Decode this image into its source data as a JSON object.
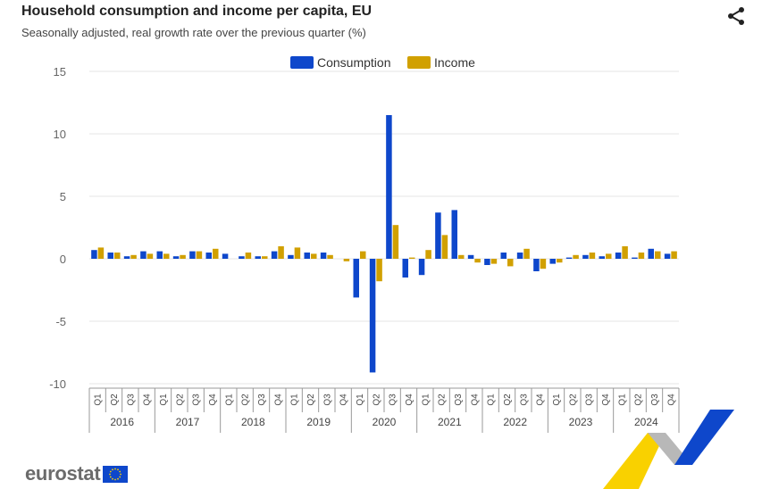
{
  "header": {
    "title": "Household consumption and income per capita, EU",
    "subtitle": "Seasonally adjusted, real growth rate over the previous quarter (%)"
  },
  "icons": {
    "share": "share-icon"
  },
  "logo": {
    "text": "eurostat",
    "flag": "eu-flag"
  },
  "chart_data": {
    "type": "bar",
    "ylim": [
      -10,
      15
    ],
    "yticks": [
      "15",
      "10",
      "5",
      "0",
      "-5",
      "-10"
    ],
    "legend": {
      "position": "top-center"
    },
    "grid": true,
    "years": [
      "2016",
      "2017",
      "2018",
      "2019",
      "2020",
      "2021",
      "2022",
      "2023",
      "2024"
    ],
    "quarters": [
      "Q1",
      "Q2",
      "Q3",
      "Q4"
    ],
    "series": [
      {
        "name": "Consumption",
        "color": "#0e47cb",
        "values": [
          0.7,
          0.5,
          0.2,
          0.6,
          0.6,
          0.2,
          0.6,
          0.5,
          0.4,
          0.2,
          0.2,
          0.6,
          0.3,
          0.5,
          0.5,
          0.0,
          -3.1,
          -9.1,
          11.5,
          -1.5,
          -1.3,
          3.7,
          3.9,
          0.3,
          -0.5,
          0.5,
          0.5,
          -1.0,
          -0.4,
          0.1,
          0.3,
          0.2,
          0.5,
          0.1,
          0.8,
          0.4
        ]
      },
      {
        "name": "Income",
        "color": "#d1a000",
        "values": [
          0.9,
          0.5,
          0.3,
          0.4,
          0.4,
          0.3,
          0.6,
          0.8,
          0.0,
          0.5,
          0.2,
          1.0,
          0.9,
          0.4,
          0.3,
          -0.2,
          0.6,
          -1.8,
          2.7,
          0.1,
          0.7,
          1.9,
          0.3,
          -0.3,
          -0.4,
          -0.6,
          0.8,
          -0.8,
          -0.3,
          0.3,
          0.5,
          0.4,
          1.0,
          0.5,
          0.6,
          0.6
        ]
      }
    ]
  }
}
